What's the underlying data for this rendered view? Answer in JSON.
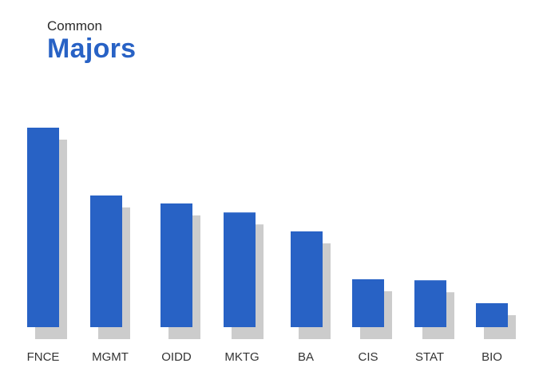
{
  "header": {
    "subtitle": "Common",
    "title": "Majors"
  },
  "colors": {
    "bar": "#2862c5",
    "shadow": "#cccccc",
    "title": "#2862c5"
  },
  "chart_data": {
    "type": "bar",
    "title": "Majors",
    "subtitle": "Common",
    "categories": [
      "FNCE",
      "MGMT",
      "OIDD",
      "MKTG",
      "BA",
      "CIS",
      "STAT",
      "BIO"
    ],
    "values": [
      100,
      66,
      62,
      57.5,
      48,
      24,
      23.5,
      12
    ],
    "ylim": [
      0,
      100
    ],
    "grid": false,
    "legend": "none"
  }
}
